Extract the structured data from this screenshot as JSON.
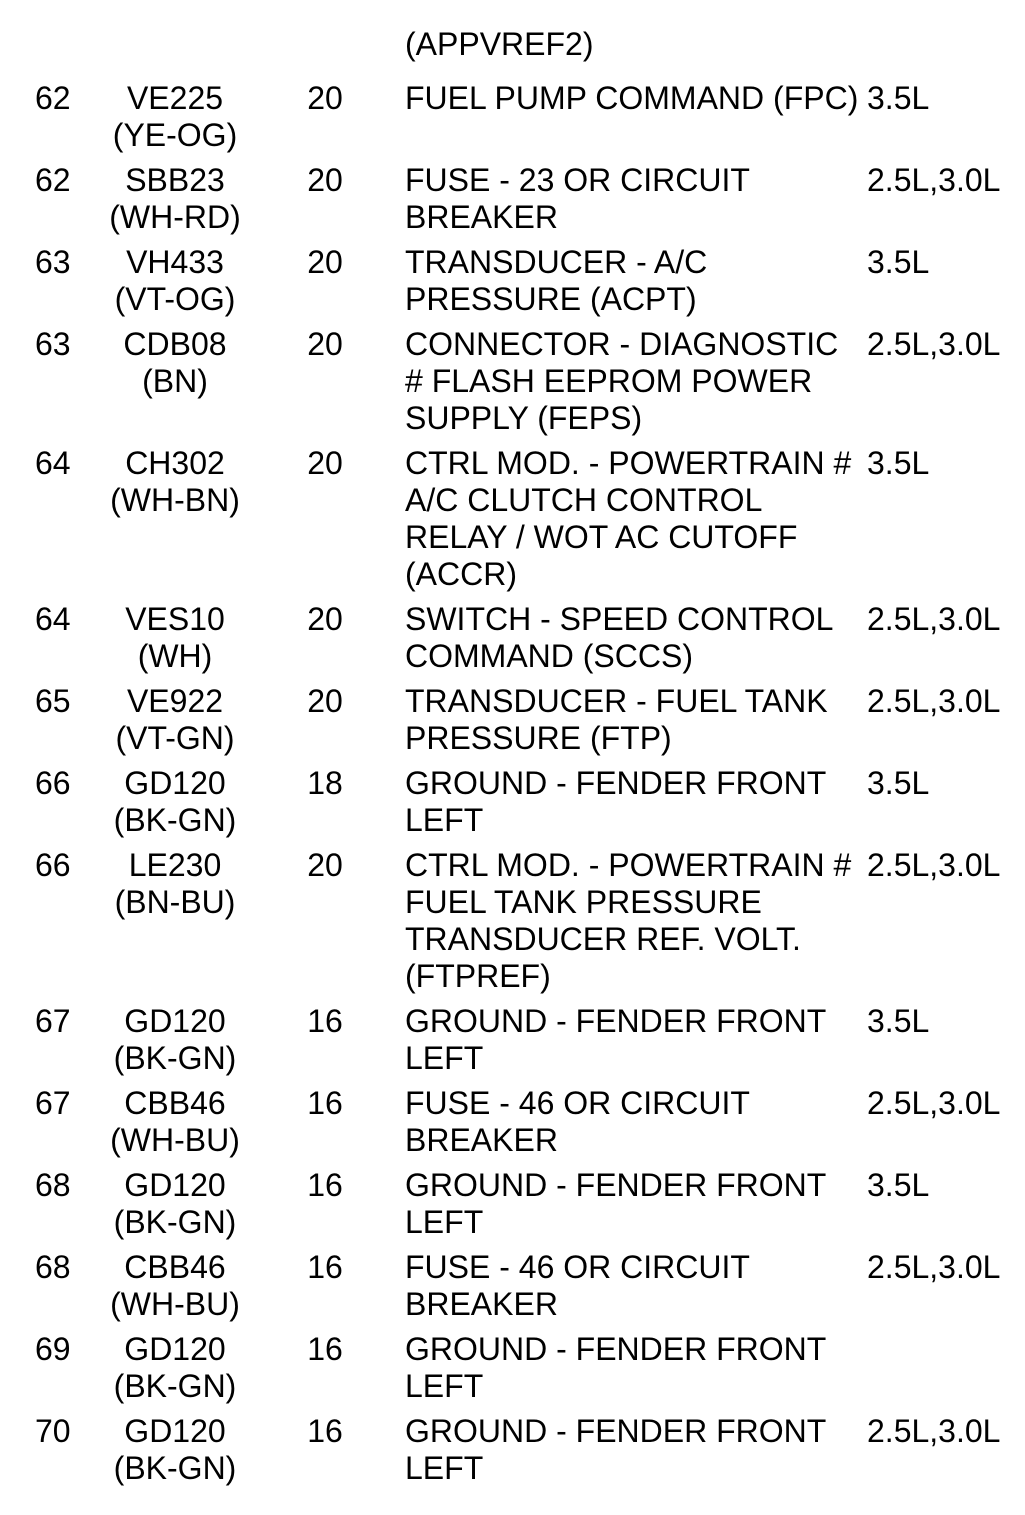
{
  "page": {
    "background_color": "#ffffff",
    "text_color": "#000000"
  },
  "table": {
    "continuation_line": "(APPVREF2)",
    "rows": [
      {
        "pin": "62",
        "circuit": "VE225",
        "color": "(YE-OG)",
        "gauge": "20",
        "description": "FUEL PUMP COMMAND (FPC)",
        "engine": "3.5L"
      },
      {
        "pin": "62",
        "circuit": "SBB23",
        "color": "(WH-RD)",
        "gauge": "20",
        "description": "FUSE - 23 OR CIRCUIT\nBREAKER",
        "engine": "2.5L,3.0L"
      },
      {
        "pin": "63",
        "circuit": "VH433",
        "color": "(VT-OG)",
        "gauge": "20",
        "description": "TRANSDUCER - A/C\nPRESSURE (ACPT)",
        "engine": "3.5L"
      },
      {
        "pin": "63",
        "circuit": "CDB08",
        "color": "(BN)",
        "gauge": "20",
        "description": "CONNECTOR - DIAGNOSTIC\n# FLASH EEPROM POWER\nSUPPLY (FEPS)",
        "engine": "2.5L,3.0L"
      },
      {
        "pin": "64",
        "circuit": "CH302",
        "color": "(WH-BN)",
        "gauge": "20",
        "description": "CTRL MOD. - POWERTRAIN #\nA/C CLUTCH CONTROL\nRELAY / WOT AC CUTOFF\n(ACCR)",
        "engine": "3.5L"
      },
      {
        "pin": "64",
        "circuit": "VES10",
        "color": "(WH)",
        "gauge": "20",
        "description": "SWITCH - SPEED CONTROL\nCOMMAND (SCCS)",
        "engine": "2.5L,3.0L"
      },
      {
        "pin": "65",
        "circuit": "VE922",
        "color": "(VT-GN)",
        "gauge": "20",
        "description": "TRANSDUCER - FUEL TANK\nPRESSURE (FTP)",
        "engine": "2.5L,3.0L"
      },
      {
        "pin": "66",
        "circuit": "GD120",
        "color": "(BK-GN)",
        "gauge": "18",
        "description": "GROUND - FENDER FRONT\nLEFT",
        "engine": "3.5L"
      },
      {
        "pin": "66",
        "circuit": "LE230",
        "color": "(BN-BU)",
        "gauge": "20",
        "description": "CTRL MOD. - POWERTRAIN #\nFUEL TANK PRESSURE\nTRANSDUCER REF. VOLT.\n(FTPREF)",
        "engine": "2.5L,3.0L"
      },
      {
        "pin": "67",
        "circuit": "GD120",
        "color": "(BK-GN)",
        "gauge": "16",
        "description": "GROUND - FENDER FRONT\nLEFT",
        "engine": "3.5L"
      },
      {
        "pin": "67",
        "circuit": "CBB46",
        "color": "(WH-BU)",
        "gauge": "16",
        "description": "FUSE - 46 OR CIRCUIT\nBREAKER",
        "engine": "2.5L,3.0L"
      },
      {
        "pin": "68",
        "circuit": "GD120",
        "color": "(BK-GN)",
        "gauge": "16",
        "description": "GROUND - FENDER FRONT\nLEFT",
        "engine": "3.5L"
      },
      {
        "pin": "68",
        "circuit": "CBB46",
        "color": "(WH-BU)",
        "gauge": "16",
        "description": "FUSE - 46 OR CIRCUIT\nBREAKER",
        "engine": "2.5L,3.0L"
      },
      {
        "pin": "69",
        "circuit": "GD120",
        "color": "(BK-GN)",
        "gauge": "16",
        "description": "GROUND - FENDER FRONT\nLEFT",
        "engine": ""
      },
      {
        "pin": "70",
        "circuit": "GD120",
        "color": "(BK-GN)",
        "gauge": "16",
        "description": "GROUND - FENDER FRONT\nLEFT",
        "engine": "2.5L,3.0L"
      }
    ]
  }
}
